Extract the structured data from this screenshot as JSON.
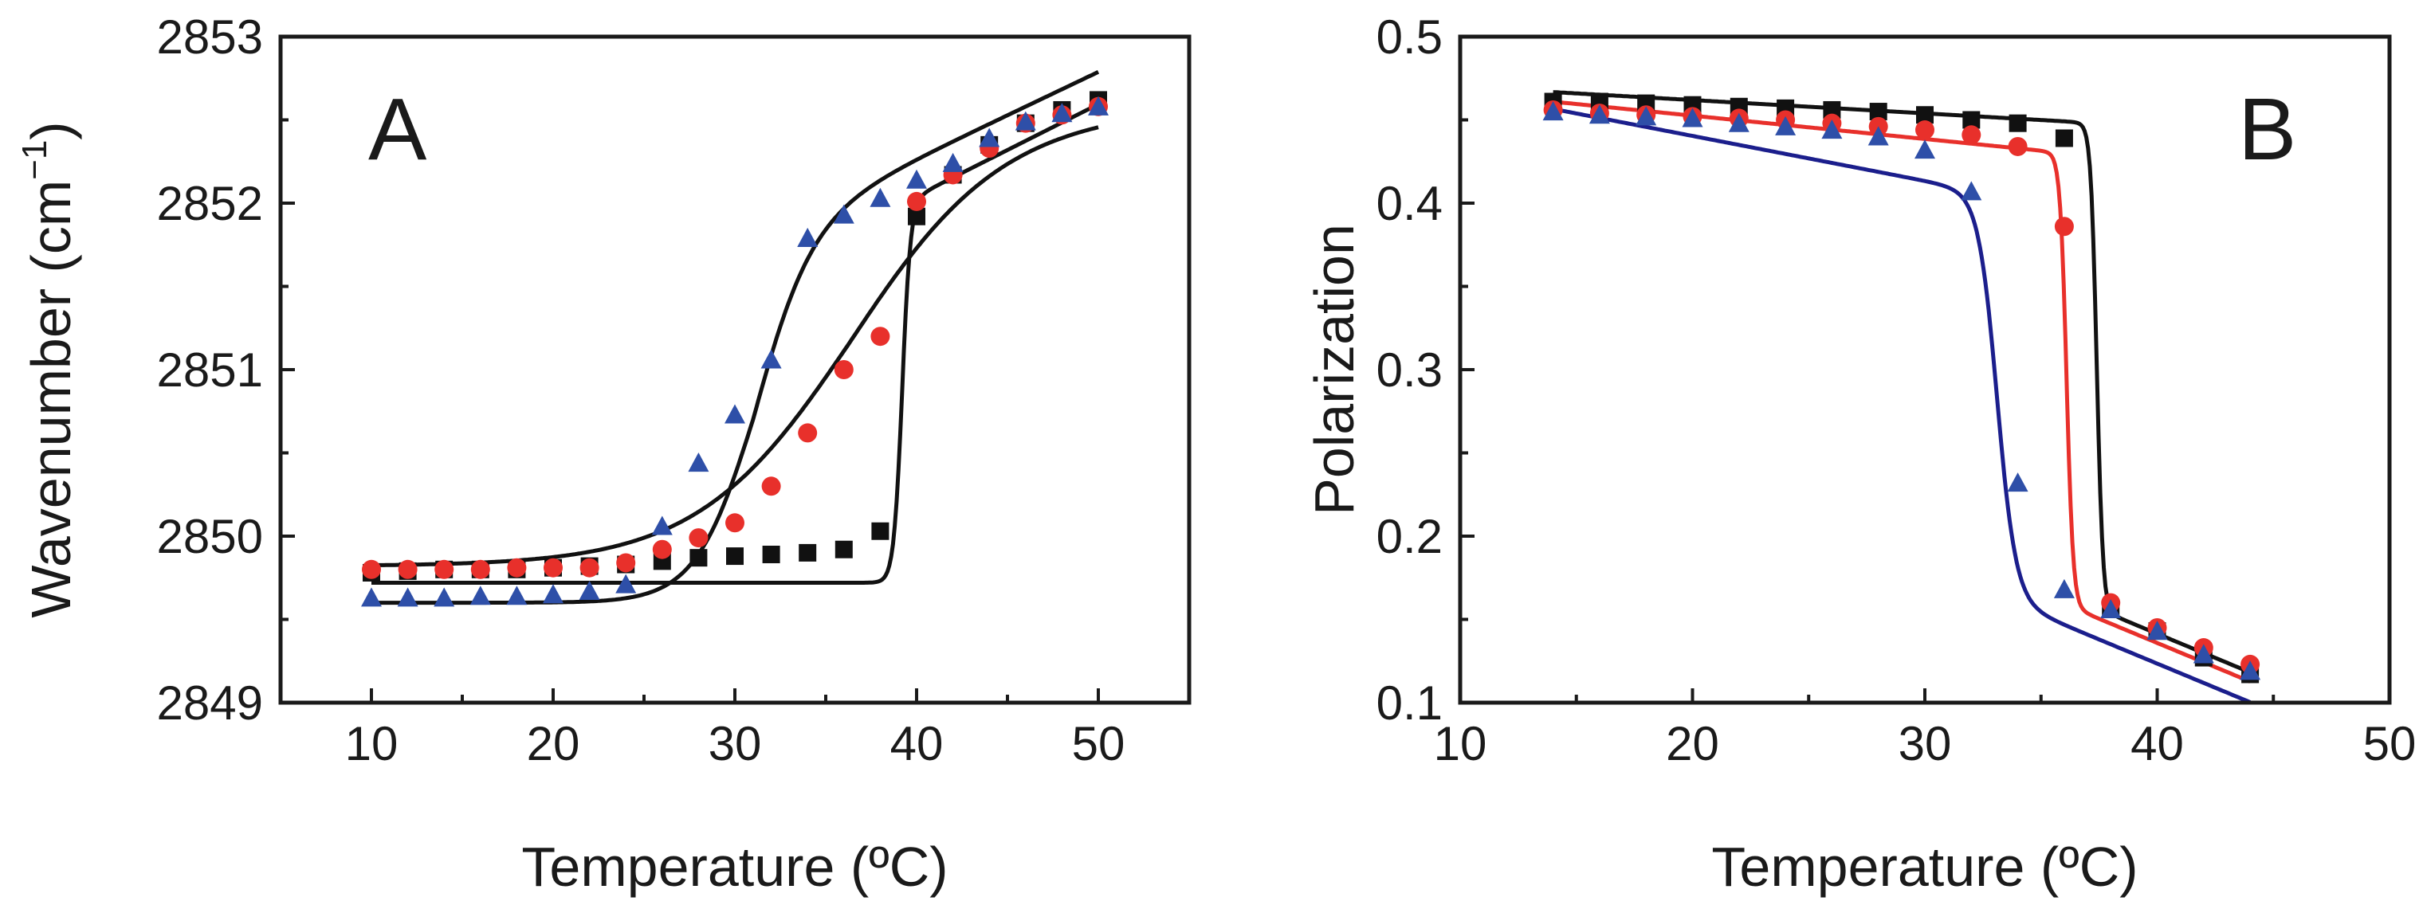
{
  "chart_data": [
    {
      "panel": "A",
      "type": "line",
      "title": "",
      "panel_label": "A",
      "xlabel": "Temperature (ºC)",
      "ylabel": "Wavenumber (cm",
      "ylabel_sup": "−1",
      "ylabel_end": ")",
      "xlim": [
        5,
        55
      ],
      "ylim": [
        2849,
        2853
      ],
      "xticks": [
        10,
        20,
        30,
        40,
        50
      ],
      "yticks": [
        2849,
        2850,
        2851,
        2852,
        2853
      ],
      "xtick_labels": [
        "10",
        "20",
        "30",
        "40",
        "50"
      ],
      "ytick_labels": [
        "2849",
        "2850",
        "2851",
        "2852",
        "2853"
      ],
      "grid": false,
      "series": [
        {
          "name": "black squares",
          "color": "#111111",
          "marker": "square",
          "x": [
            10,
            12,
            14,
            16,
            18,
            20,
            22,
            24,
            26,
            28,
            30,
            32,
            34,
            36,
            38,
            40,
            42,
            44,
            46,
            48,
            50
          ],
          "y": [
            2849.78,
            2849.79,
            2849.8,
            2849.8,
            2849.8,
            2849.81,
            2849.82,
            2849.83,
            2849.85,
            2849.87,
            2849.88,
            2849.89,
            2849.9,
            2849.92,
            2850.03,
            2851.92,
            2852.17,
            2852.35,
            2852.48,
            2852.56,
            2852.62
          ],
          "fit": {
            "color": "#111111",
            "low": 2849.72,
            "high": 2852.0,
            "t0": 39.2,
            "k": 0.23,
            "slope": 0.055
          }
        },
        {
          "name": "red circles",
          "color": "#e8302b",
          "marker": "circle",
          "x": [
            10,
            12,
            14,
            16,
            18,
            20,
            22,
            24,
            26,
            28,
            30,
            32,
            34,
            36,
            38,
            40,
            42,
            44,
            46,
            48,
            50
          ],
          "y": [
            2849.8,
            2849.8,
            2849.8,
            2849.8,
            2849.81,
            2849.81,
            2849.81,
            2849.84,
            2849.92,
            2849.99,
            2850.08,
            2850.3,
            2850.62,
            2851.0,
            2851.2,
            2852.01,
            2852.17,
            2852.33,
            2852.48,
            2852.53,
            2852.58
          ],
          "fit": {
            "color": "#111111",
            "low": 2849.82,
            "high": 2852.5,
            "t0": 36.3,
            "k": 4.2,
            "slope": 0.004
          }
        },
        {
          "name": "blue triangles",
          "color": "#2e4fa8",
          "marker": "triangle",
          "x": [
            10,
            12,
            14,
            16,
            18,
            20,
            22,
            24,
            26,
            28,
            30,
            32,
            34,
            36,
            38,
            40,
            42,
            44,
            46,
            48,
            50
          ],
          "y": [
            2849.63,
            2849.63,
            2849.63,
            2849.64,
            2849.64,
            2849.65,
            2849.67,
            2849.71,
            2850.06,
            2850.44,
            2850.73,
            2851.06,
            2851.79,
            2851.93,
            2852.03,
            2852.14,
            2852.24,
            2852.39,
            2852.49,
            2852.54,
            2852.58
          ],
          "fit": {
            "color": "#111111",
            "low": 2849.6,
            "high": 2851.8,
            "t0": 31.0,
            "k": 1.6,
            "slope": 0.052
          }
        }
      ]
    },
    {
      "panel": "B",
      "type": "line",
      "title": "",
      "panel_label": "B",
      "xlabel": "Temperature (ºC)",
      "ylabel": "Polarization",
      "xlim": [
        10,
        50
      ],
      "ylim": [
        0.1,
        0.5
      ],
      "xticks": [
        10,
        20,
        30,
        40,
        50
      ],
      "yticks": [
        0.1,
        0.2,
        0.3,
        0.4,
        0.5
      ],
      "xtick_labels": [
        "10",
        "20",
        "30",
        "40",
        "50"
      ],
      "ytick_labels": [
        "0.1",
        "0.2",
        "0.3",
        "0.4",
        "0.5"
      ],
      "grid": false,
      "series": [
        {
          "name": "black squares",
          "color": "#111111",
          "marker": "square",
          "x": [
            14,
            16,
            18,
            20,
            22,
            24,
            26,
            28,
            30,
            32,
            34,
            36,
            38,
            40,
            42,
            44
          ],
          "y": [
            0.461,
            0.461,
            0.46,
            0.459,
            0.458,
            0.457,
            0.456,
            0.455,
            0.453,
            0.45,
            0.448,
            0.439,
            0.156,
            0.143,
            0.127,
            0.117
          ],
          "fit": {
            "color": "#111111",
            "low": 0.153,
            "high": 0.448,
            "t0": 37.4,
            "k": 0.13,
            "slopeHigh": 0.0008,
            "slopeLow": 0.0058
          }
        },
        {
          "name": "red circles",
          "color": "#e8302b",
          "marker": "circle",
          "x": [
            14,
            16,
            18,
            20,
            22,
            24,
            26,
            28,
            30,
            32,
            34,
            36,
            38,
            40,
            42,
            44
          ],
          "y": [
            0.456,
            0.454,
            0.453,
            0.452,
            0.451,
            0.45,
            0.448,
            0.446,
            0.444,
            0.441,
            0.434,
            0.386,
            0.16,
            0.145,
            0.133,
            0.123
          ],
          "fit": {
            "color": "#e8302b",
            "low": 0.155,
            "high": 0.43,
            "t0": 36.1,
            "k": 0.14,
            "slopeHigh": 0.0014,
            "slopeLow": 0.0058
          }
        },
        {
          "name": "blue triangles",
          "color": "#2e4fa8",
          "marker": "triangle",
          "x": [
            14,
            16,
            18,
            20,
            22,
            24,
            26,
            28,
            30,
            32,
            34,
            36,
            38,
            40,
            42,
            44
          ],
          "y": [
            0.455,
            0.453,
            0.452,
            0.451,
            0.448,
            0.446,
            0.444,
            0.44,
            0.432,
            0.407,
            0.232,
            0.168,
            0.156,
            0.143,
            0.129,
            0.119
          ],
          "fit": {
            "color": "#1b1e8c",
            "low": 0.16,
            "high": 0.405,
            "t0": 33.1,
            "k": 0.4,
            "slopeHigh": 0.0027,
            "slopeLow": 0.0058
          }
        }
      ]
    }
  ]
}
